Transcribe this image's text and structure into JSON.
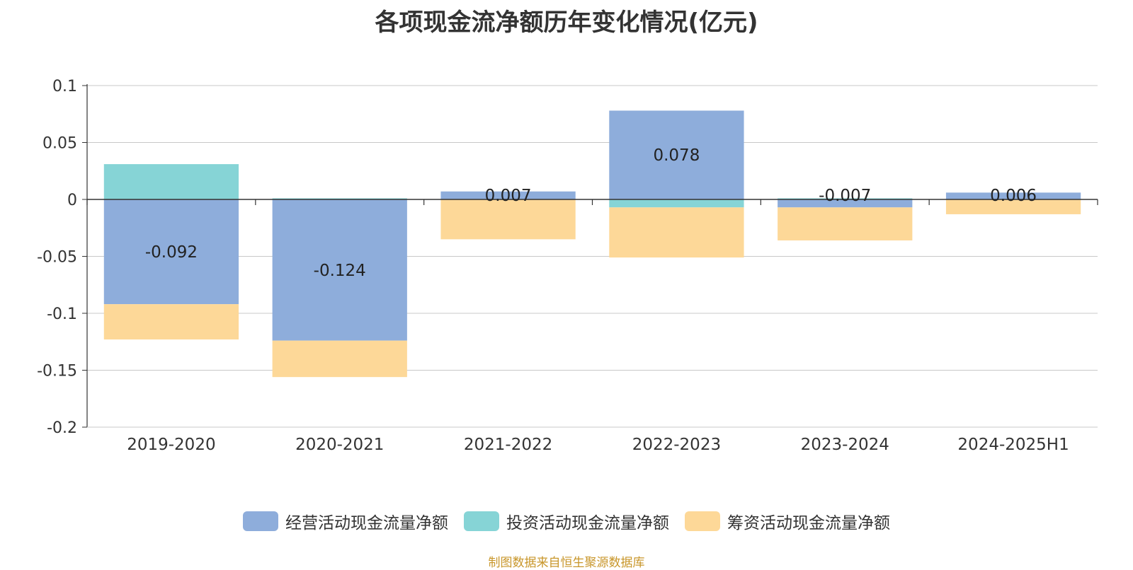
{
  "chart_data": {
    "type": "bar",
    "stacked": true,
    "title": "各项现金流净额历年变化情况(亿元)",
    "categories": [
      "2019-2020",
      "2020-2021",
      "2021-2022",
      "2022-2023",
      "2023-2024",
      "2024-2025H1"
    ],
    "series": [
      {
        "name": "经营活动现金流量净额",
        "color": "#8eaddb",
        "values": [
          -0.092,
          -0.124,
          0.007,
          0.078,
          -0.007,
          0.006
        ],
        "labels": [
          "-0.092",
          "-0.124",
          "0.007",
          "0.078",
          "-0.007",
          "0.006"
        ]
      },
      {
        "name": "投资活动现金流量净额",
        "color": "#86d4d6",
        "values": [
          0.031,
          0.001,
          0.0,
          -0.007,
          0.001,
          0.0
        ]
      },
      {
        "name": "筹资活动现金流量净额",
        "color": "#fdd898",
        "values": [
          -0.031,
          -0.032,
          -0.035,
          -0.044,
          -0.029,
          -0.013
        ]
      }
    ],
    "y_ticks": [
      "0.1",
      "0.05",
      "0",
      "-0.05",
      "-0.1",
      "-0.15",
      "-0.2"
    ],
    "ylim": [
      -0.2,
      0.1
    ],
    "grid": true,
    "legend_position": "bottom"
  },
  "source_note": "制图数据来自恒生聚源数据库"
}
